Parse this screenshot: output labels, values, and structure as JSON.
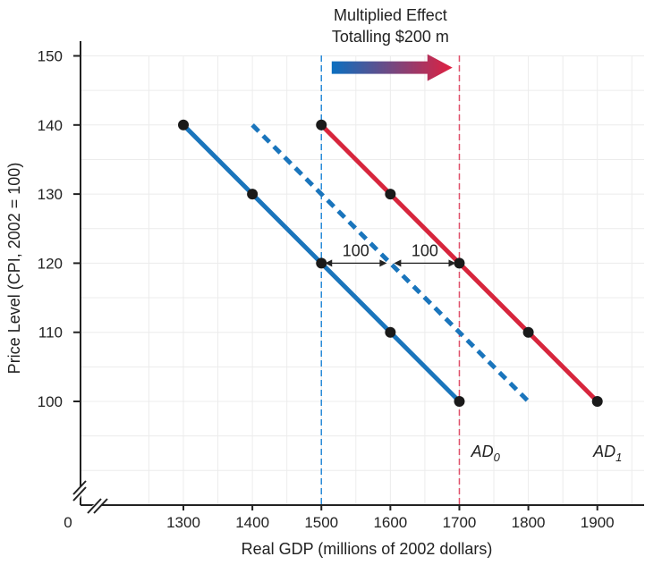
{
  "chart_data": {
    "type": "line",
    "title": "",
    "xlabel": "Real GDP (millions of 2002 dollars)",
    "ylabel": "Price Level (CPI, 2002 = 100)",
    "xlim": [
      1200,
      1950
    ],
    "ylim": [
      88,
      152
    ],
    "x_ticks": [
      1300,
      1400,
      1500,
      1600,
      1700,
      1800,
      1900
    ],
    "y_ticks": [
      100,
      110,
      120,
      130,
      140,
      150
    ],
    "origin_label": "0",
    "axis_break": true,
    "grid": true,
    "series": [
      {
        "name": "AD0",
        "label_main": "AD",
        "label_sub": "0",
        "label_at": [
          1738,
          92
        ],
        "color": "#1a75bc",
        "style": "solid",
        "markers": true,
        "points": [
          [
            1300,
            140
          ],
          [
            1400,
            130
          ],
          [
            1500,
            120
          ],
          [
            1600,
            110
          ],
          [
            1700,
            100
          ]
        ]
      },
      {
        "name": "intermediate",
        "color": "#1a75bc",
        "style": "dashed",
        "markers": false,
        "points": [
          [
            1400,
            140
          ],
          [
            1800,
            100
          ]
        ]
      },
      {
        "name": "AD1",
        "label_main": "AD",
        "label_sub": "1",
        "label_at": [
          1915,
          92
        ],
        "color": "#d7263d",
        "style": "solid",
        "markers": true,
        "points": [
          [
            1500,
            140
          ],
          [
            1600,
            130
          ],
          [
            1700,
            120
          ],
          [
            1800,
            110
          ],
          [
            1900,
            100
          ]
        ]
      }
    ],
    "vlines": [
      {
        "x": 1500,
        "color": "#2a8bd8"
      },
      {
        "x": 1700,
        "color": "#e0506a"
      }
    ],
    "annotations": [
      {
        "text_lines": [
          "Multiplied Effect",
          "Totalling $200 m"
        ],
        "x": 1600,
        "y": 153
      },
      {
        "text": "100",
        "from": 1500,
        "to": 1600,
        "y": 120,
        "label_y": 121
      },
      {
        "text": "100",
        "from": 1600,
        "to": 1700,
        "y": 120,
        "label_y": 121
      }
    ],
    "shift_arrow": {
      "from": 1515,
      "to": 1690,
      "y": 148.3,
      "color_start": "#0a6fc0",
      "color_end": "#e02040"
    }
  }
}
